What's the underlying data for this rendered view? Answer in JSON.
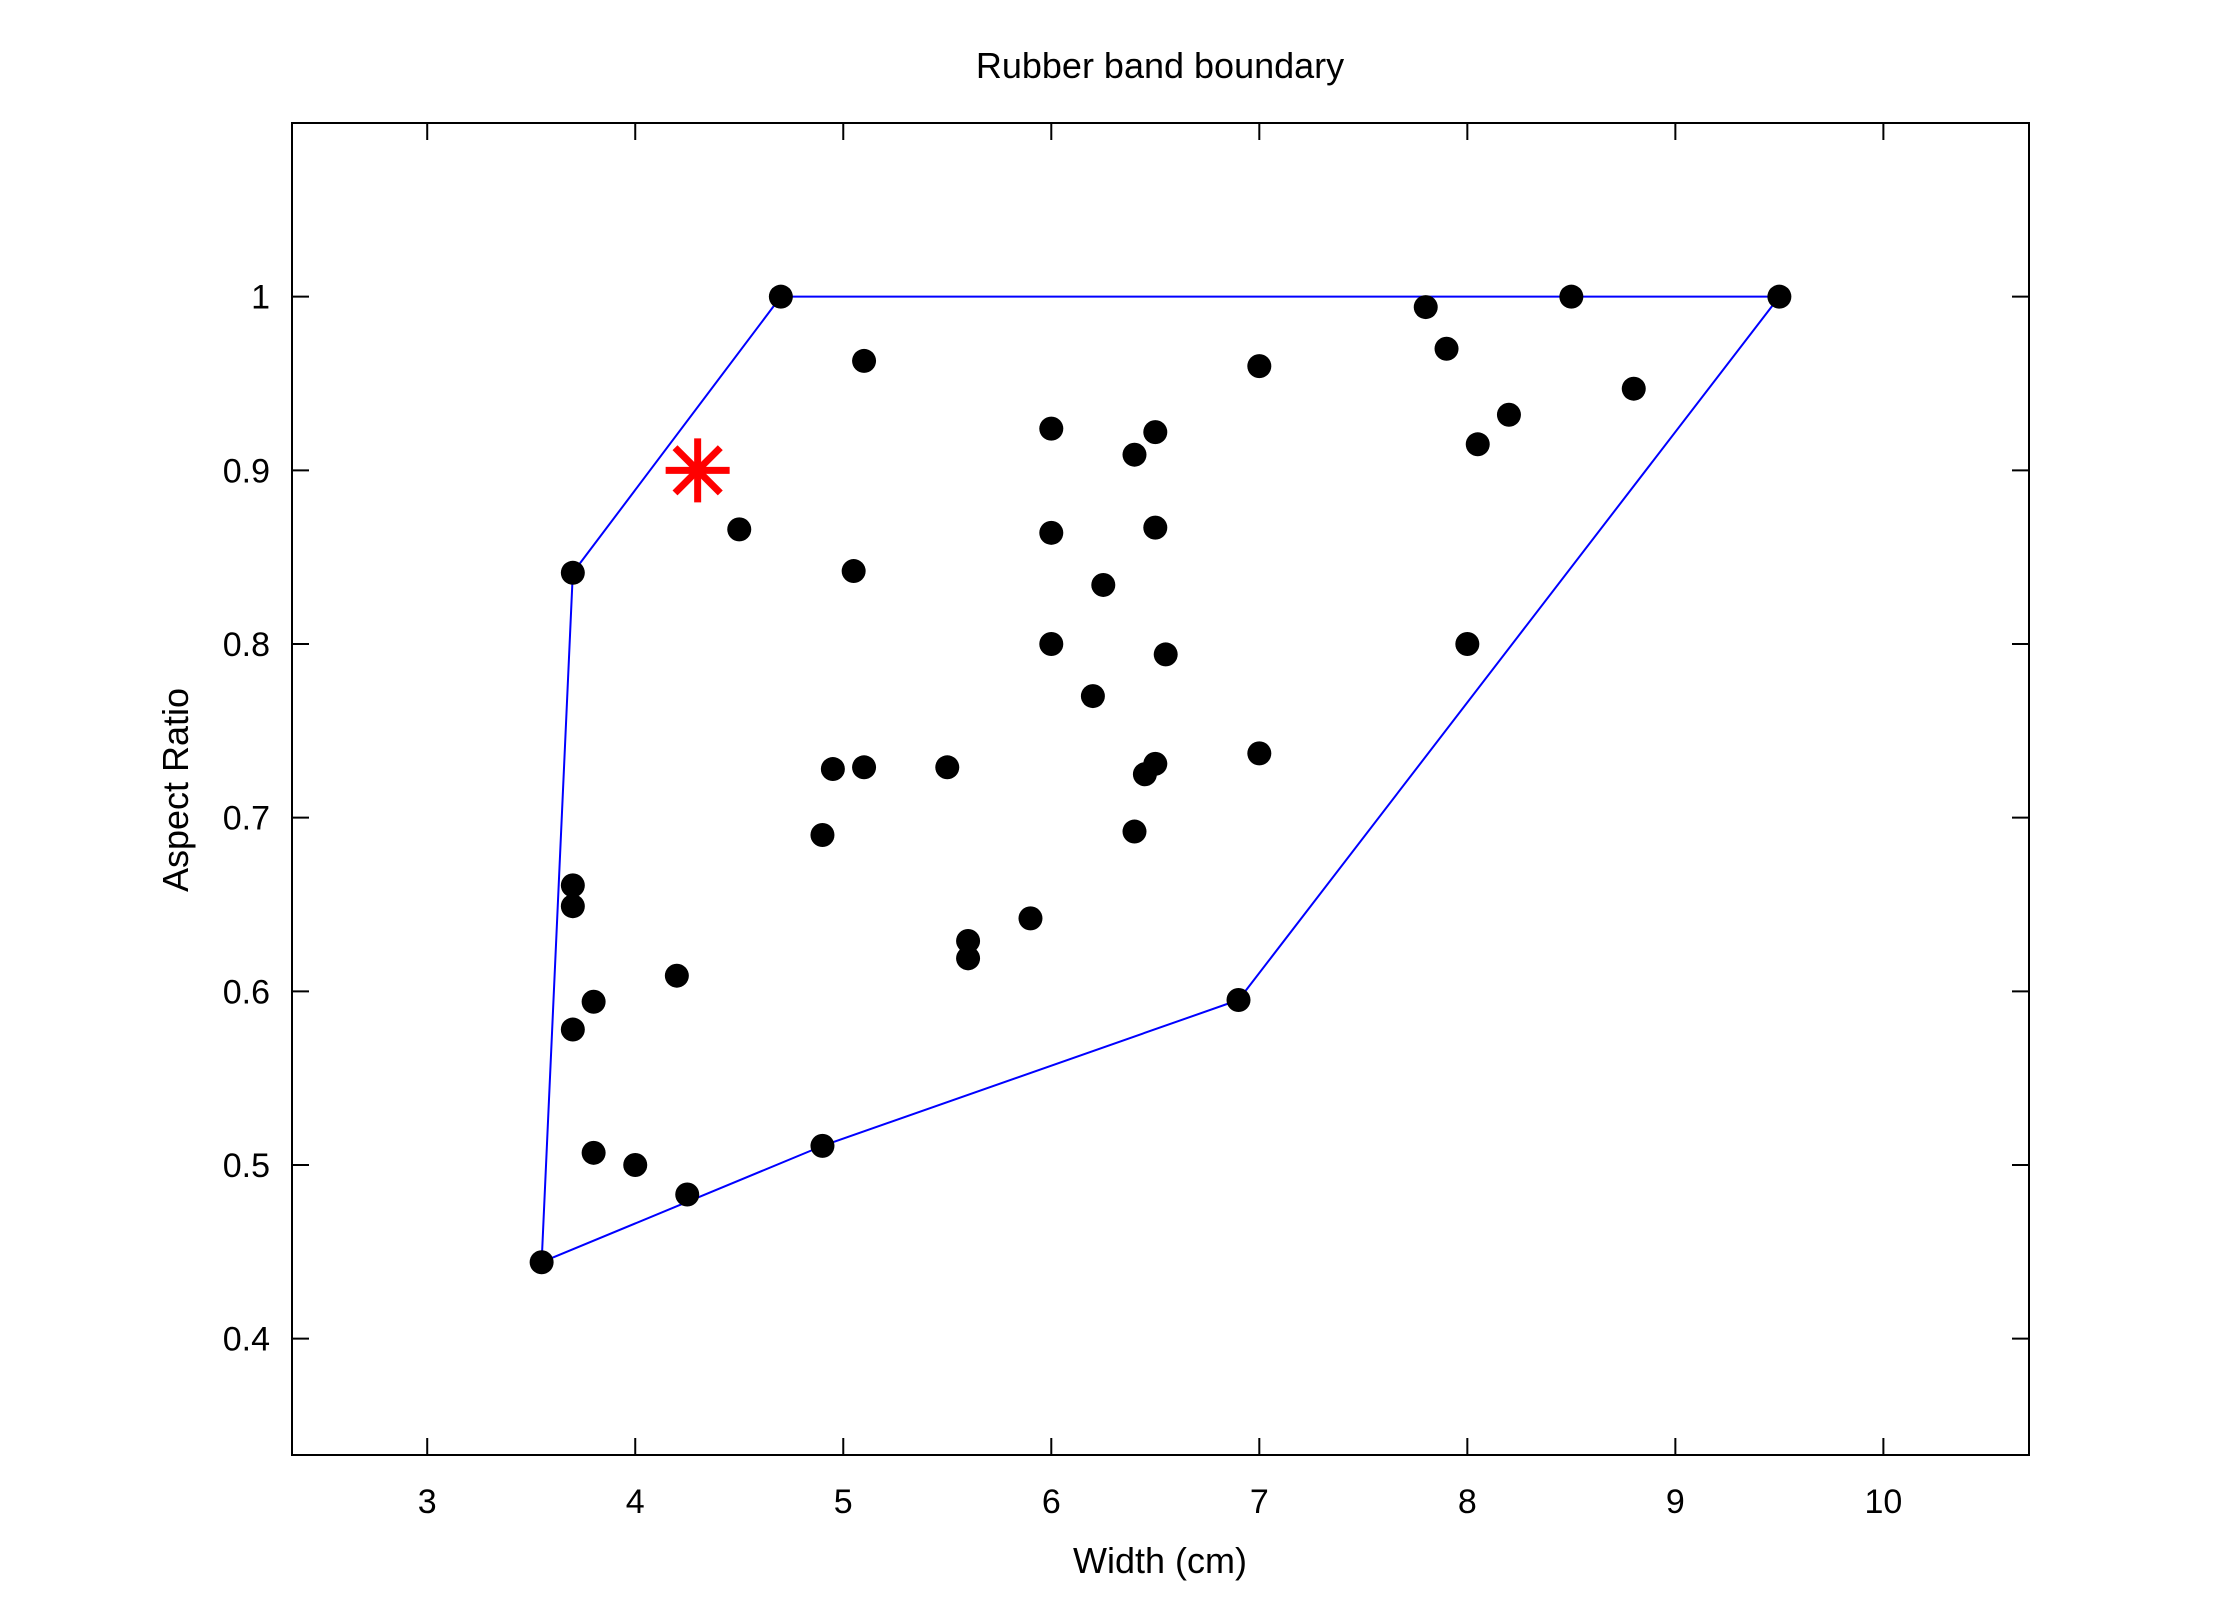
{
  "chart_data": {
    "type": "scatter",
    "title": "Rubber band boundary",
    "xlabel": "Width (cm)",
    "ylabel": "Aspect Ratio",
    "xlim": [
      2.35,
      10.7
    ],
    "ylim": [
      0.333,
      1.1
    ],
    "xticks": [
      3,
      4,
      5,
      6,
      7,
      8,
      9,
      10
    ],
    "yticks": [
      0.4,
      0.5,
      0.6,
      0.7,
      0.8,
      0.9,
      1
    ],
    "xtick_labels": [
      "3",
      "4",
      "5",
      "6",
      "7",
      "8",
      "9",
      "10"
    ],
    "ytick_labels": [
      "0.4",
      "0.5",
      "0.6",
      "0.7",
      "0.8",
      "0.9",
      "1"
    ],
    "grid": false,
    "colors": {
      "points": "#000000",
      "hull": "#0000ff",
      "query": "#ff0000",
      "axes": "#000000"
    },
    "points": [
      [
        4.7,
        1.0
      ],
      [
        8.5,
        1.0
      ],
      [
        9.5,
        1.0
      ],
      [
        7.8,
        0.994
      ],
      [
        7.9,
        0.97
      ],
      [
        5.1,
        0.963
      ],
      [
        7.0,
        0.96
      ],
      [
        8.8,
        0.947
      ],
      [
        8.2,
        0.932
      ],
      [
        6.0,
        0.924
      ],
      [
        6.5,
        0.922
      ],
      [
        8.05,
        0.915
      ],
      [
        6.4,
        0.909
      ],
      [
        4.5,
        0.866
      ],
      [
        6.5,
        0.867
      ],
      [
        6.0,
        0.864
      ],
      [
        3.7,
        0.841
      ],
      [
        5.05,
        0.842
      ],
      [
        6.25,
        0.834
      ],
      [
        6.0,
        0.8
      ],
      [
        8.0,
        0.8
      ],
      [
        6.55,
        0.794
      ],
      [
        6.2,
        0.77
      ],
      [
        7.0,
        0.737
      ],
      [
        6.5,
        0.731
      ],
      [
        6.45,
        0.725
      ],
      [
        4.95,
        0.728
      ],
      [
        5.1,
        0.729
      ],
      [
        5.5,
        0.729
      ],
      [
        4.9,
        0.69
      ],
      [
        6.4,
        0.692
      ],
      [
        3.7,
        0.661
      ],
      [
        3.7,
        0.649
      ],
      [
        5.9,
        0.642
      ],
      [
        5.6,
        0.629
      ],
      [
        5.6,
        0.619
      ],
      [
        4.2,
        0.609
      ],
      [
        6.9,
        0.595
      ],
      [
        3.8,
        0.594
      ],
      [
        3.7,
        0.578
      ],
      [
        4.9,
        0.511
      ],
      [
        3.8,
        0.507
      ],
      [
        4.0,
        0.5
      ],
      [
        4.25,
        0.483
      ],
      [
        3.55,
        0.444
      ]
    ],
    "hull": [
      [
        3.55,
        0.444
      ],
      [
        3.7,
        0.841
      ],
      [
        4.7,
        1.0
      ],
      [
        9.5,
        1.0
      ],
      [
        6.9,
        0.595
      ],
      [
        4.9,
        0.511
      ],
      [
        3.55,
        0.444
      ]
    ],
    "query_point": [
      4.3,
      0.9
    ]
  }
}
